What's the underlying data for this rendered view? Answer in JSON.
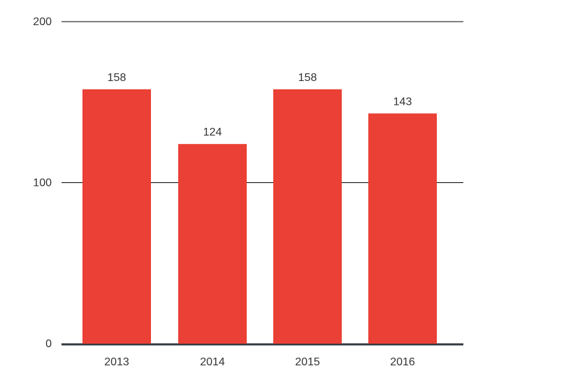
{
  "chart_data": {
    "type": "bar",
    "categories": [
      "2013",
      "2014",
      "2015",
      "2016"
    ],
    "values": [
      158,
      124,
      158,
      143
    ],
    "data_labels": [
      "158",
      "124",
      "158",
      "143"
    ],
    "yticks": [
      0,
      100,
      200
    ],
    "ytick_labels": [
      "0",
      "100",
      "200"
    ],
    "ylim": [
      0,
      200
    ],
    "title": "",
    "xlabel": "",
    "ylabel": "",
    "grid": true,
    "legend": "none"
  },
  "colors": {
    "bar": "#ea4035",
    "grid": "#000000",
    "baseline": "#333a40",
    "text": "#333333"
  }
}
